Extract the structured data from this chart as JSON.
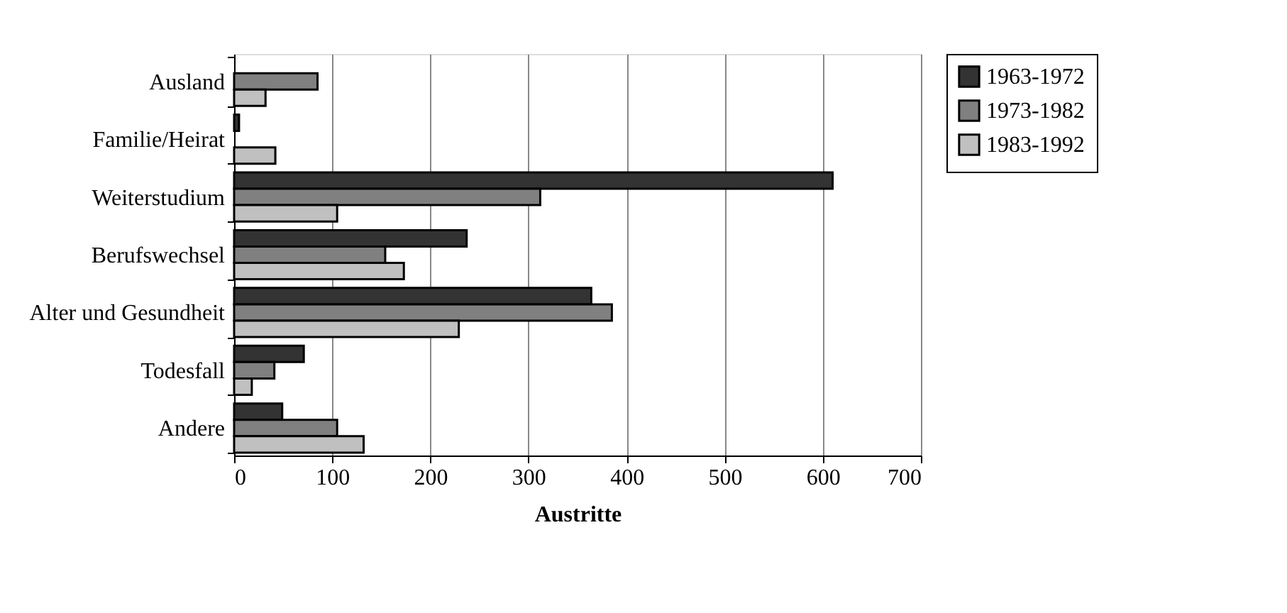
{
  "chart_data": {
    "type": "bar",
    "orientation": "horizontal",
    "xlabel": "Austritte",
    "categories": [
      "Ausland",
      "Familie/Heirat",
      "Weiterstudium",
      "Berufswechsel",
      "Alter und Gesundheit",
      "Todesfall",
      "Andere"
    ],
    "series": [
      {
        "name": "1963-1972",
        "color": "#333333",
        "values": [
          null,
          5,
          610,
          237,
          364,
          71,
          49
        ]
      },
      {
        "name": "1973-1982",
        "color": "#808080",
        "values": [
          85,
          null,
          312,
          154,
          385,
          41,
          105
        ]
      },
      {
        "name": "1983-1992",
        "color": "#c0c0c0",
        "values": [
          32,
          42,
          105,
          173,
          229,
          18,
          132
        ]
      }
    ],
    "xlim": [
      0,
      700
    ],
    "xticks": [
      0,
      100,
      200,
      300,
      400,
      500,
      600,
      700
    ],
    "grid": "x",
    "legend": "right"
  }
}
